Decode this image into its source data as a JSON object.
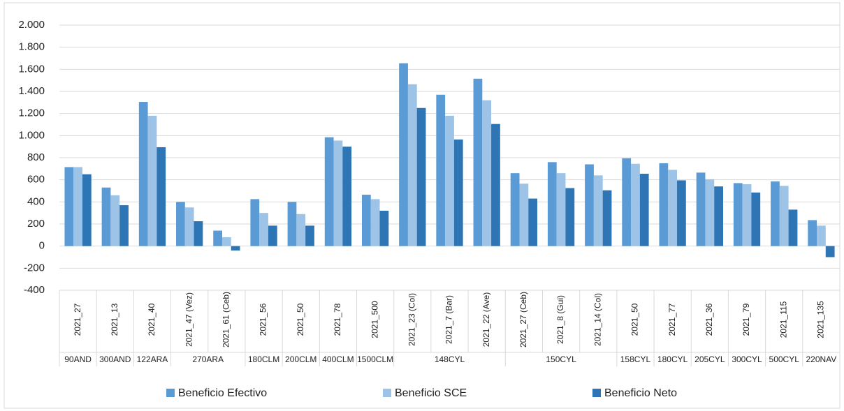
{
  "chart_data": {
    "type": "bar",
    "categories": [
      "2021_27",
      "2021_13",
      "2021_40",
      "2021_47 (Vez)",
      "2021_61 (Ceb)",
      "2021_56",
      "2021_50",
      "2021_78",
      "2021_500",
      "2021_23 (Col)",
      "2021_7 (Bar)",
      "2021_22 (Ave)",
      "2021_27 (Ceb)",
      "2021_8 (Gui)",
      "2021_14 (Col)",
      "2021_50",
      "2021_77",
      "2021_36",
      "2021_79",
      "2021_115",
      "2021_135"
    ],
    "group_labels": [
      "90AND",
      "300AND",
      "122ARA",
      "270ARA",
      null,
      "180CLM",
      "200CLM",
      "400CLM",
      "1500CLM",
      "148CYL",
      null,
      null,
      "150CYL",
      null,
      null,
      "158CYL",
      "180CYL",
      "205CYL",
      "300CYL",
      "500CYL",
      "220NAV"
    ],
    "series": [
      {
        "name": "Beneficio Efectivo",
        "color": "#5b9bd5",
        "values": [
          715,
          530,
          1305,
          400,
          140,
          425,
          400,
          985,
          465,
          1655,
          1370,
          1515,
          660,
          760,
          740,
          795,
          750,
          665,
          570,
          585,
          235
        ]
      },
      {
        "name": "Beneficio SCE",
        "color": "#9dc3e6",
        "values": [
          715,
          460,
          1180,
          350,
          80,
          300,
          290,
          955,
          425,
          1465,
          1180,
          1320,
          565,
          660,
          640,
          745,
          690,
          605,
          560,
          545,
          185
        ]
      },
      {
        "name": "Beneficio Neto",
        "color": "#2e75b6",
        "values": [
          650,
          370,
          895,
          225,
          -40,
          185,
          185,
          900,
          320,
          1250,
          965,
          1105,
          430,
          525,
          505,
          655,
          595,
          540,
          485,
          330,
          -100
        ]
      }
    ],
    "ylim": [
      -400,
      2000
    ],
    "yticks": [
      -400,
      -200,
      0,
      200,
      400,
      600,
      800,
      {
        "value": 1000,
        "label": "1.000"
      },
      {
        "value": 1200,
        "label": "1.200"
      },
      {
        "value": 1400,
        "label": "1.400"
      },
      {
        "value": 1600,
        "label": "1.600"
      },
      {
        "value": 1800,
        "label": "1.800"
      },
      {
        "value": 2000,
        "label": "2.000"
      }
    ],
    "grid": true,
    "legend": "bottom"
  }
}
